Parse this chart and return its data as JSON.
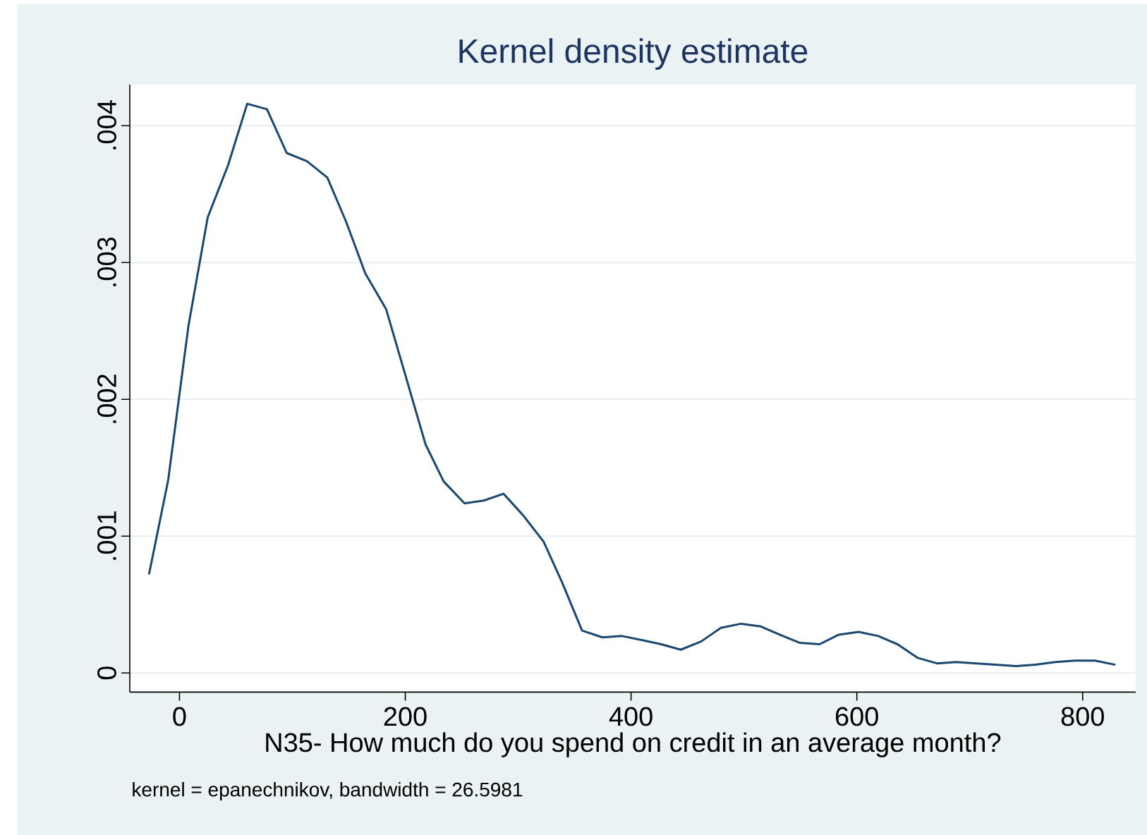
{
  "chart_data": {
    "type": "line",
    "title": "Kernel density estimate",
    "xlabel": "N35- How much do you spend on credit in an average month?",
    "annotations": [
      "kernel = epanechnikov, bandwidth = 26.5981"
    ],
    "x": [
      -27,
      -10,
      8,
      25,
      43,
      60,
      77.5,
      95,
      113,
      131,
      147.5,
      164.6,
      183,
      218,
      234,
      252.5,
      269.6,
      287,
      304.6,
      322.5,
      339,
      356.6,
      374.6,
      392,
      410,
      426.6,
      444,
      462,
      479.6,
      497.5,
      515,
      531.6,
      549.6,
      567,
      584,
      601.6,
      619,
      636,
      654,
      671,
      688,
      706,
      723,
      741,
      758,
      776,
      793,
      811,
      829
    ],
    "series": [
      {
        "color": "#1a476f",
        "values": [
          0.00072,
          0.00141,
          0.00254,
          0.00333,
          0.00371,
          0.00416,
          0.00412,
          0.0038,
          0.00374,
          0.00362,
          0.0033,
          0.00292,
          0.00266,
          0.00167,
          0.0014,
          0.00124,
          0.00126,
          0.00131,
          0.00115,
          0.00096,
          0.00066,
          0.00031,
          0.00026,
          0.00027,
          0.00024,
          0.00021,
          0.00017,
          0.00023,
          0.00033,
          0.00036,
          0.00034,
          0.00028,
          0.00022,
          0.00021,
          0.00028,
          0.0003,
          0.00027,
          0.00021,
          0.00011,
          7e-05,
          8e-05,
          7e-05,
          6e-05,
          5e-05,
          6e-05,
          8e-05,
          9e-05,
          9e-05,
          6e-05
        ]
      }
    ],
    "xlim": [
      -44,
      847
    ],
    "ylim": [
      -0.00014,
      0.0043
    ],
    "xticks": [
      0,
      200,
      400,
      600,
      800
    ],
    "yticks": [
      0,
      {
        "value": 0.001,
        "label": ".001"
      },
      {
        "value": 0.002,
        "label": ".002"
      },
      {
        "value": 0.003,
        "label": ".003"
      },
      {
        "value": 0.004,
        "label": ".004"
      }
    ],
    "grid": "y",
    "marker": "none",
    "line_style": "solid"
  }
}
